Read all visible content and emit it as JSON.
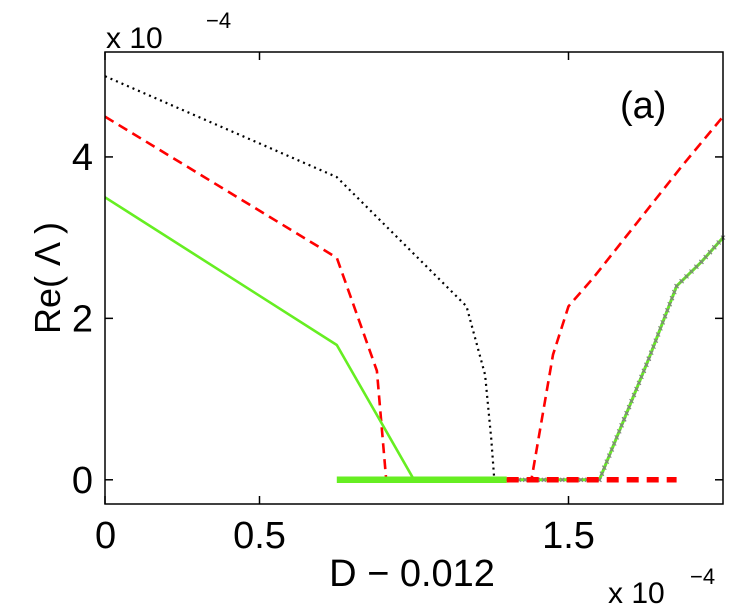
{
  "chart_data": {
    "type": "line",
    "panel_label": "(a)",
    "xlabel": "D − 0.012",
    "ylabel": "Re( Λ )",
    "x_multiplier": {
      "base": "x 10",
      "exponent": "−4"
    },
    "y_multiplier": {
      "base": "x 10",
      "exponent": "−4"
    },
    "xlim": [
      0,
      2
    ],
    "ylim": [
      -0.3,
      5.3
    ],
    "xticks": [
      {
        "value": 0,
        "label": "0"
      },
      {
        "value": 0.5,
        "label": "0.5"
      },
      {
        "value": 1.5,
        "label": "1.5"
      }
    ],
    "yticks": [
      {
        "value": 0,
        "label": "0"
      },
      {
        "value": 2,
        "label": "2"
      },
      {
        "value": 4,
        "label": "4"
      }
    ],
    "grid": false,
    "series": [
      {
        "style": "dotted",
        "color": "#000000",
        "x": [
          0,
          0.75,
          1.17,
          1.23,
          1.25,
          1.26,
          1.5,
          1.6
        ],
        "y": [
          5.0,
          3.75,
          2.15,
          1.3,
          0.5,
          0.0,
          0.0,
          0.0
        ]
      },
      {
        "style": "dashed",
        "color": "#ff0000",
        "x": [
          0,
          0.75,
          0.88,
          0.91,
          1.08,
          1.33,
          1.38,
          1.45,
          1.5,
          1.58,
          1.87,
          2.0
        ],
        "y": [
          4.5,
          2.75,
          1.35,
          0.0,
          0.0,
          0.0,
          0.0,
          1.55,
          2.15,
          2.5,
          3.9,
          4.5
        ]
      },
      {
        "style": "solid",
        "color": "#66ee22",
        "x": [
          0,
          0.75,
          1.0,
          1.3
        ],
        "y": [
          3.5,
          1.67,
          0.0,
          0.0
        ]
      },
      {
        "style": "solid-markers",
        "color": "#66ee22",
        "marker_color": "#808080",
        "x": [
          1.3,
          1.4,
          1.5,
          1.6,
          1.68,
          1.76,
          1.85,
          1.93,
          2.0
        ],
        "y": [
          0.0,
          0.0,
          0.0,
          0.0,
          0.75,
          1.5,
          2.4,
          2.7,
          3.0
        ]
      },
      {
        "style": "thick-solid",
        "color": "#66ee22",
        "x": [
          0.75,
          1.3
        ],
        "y": [
          0.0,
          0.0
        ]
      },
      {
        "style": "thick-dashed",
        "color": "#ff0000",
        "x": [
          1.3,
          1.85
        ],
        "y": [
          0.0,
          0.0
        ]
      }
    ]
  }
}
